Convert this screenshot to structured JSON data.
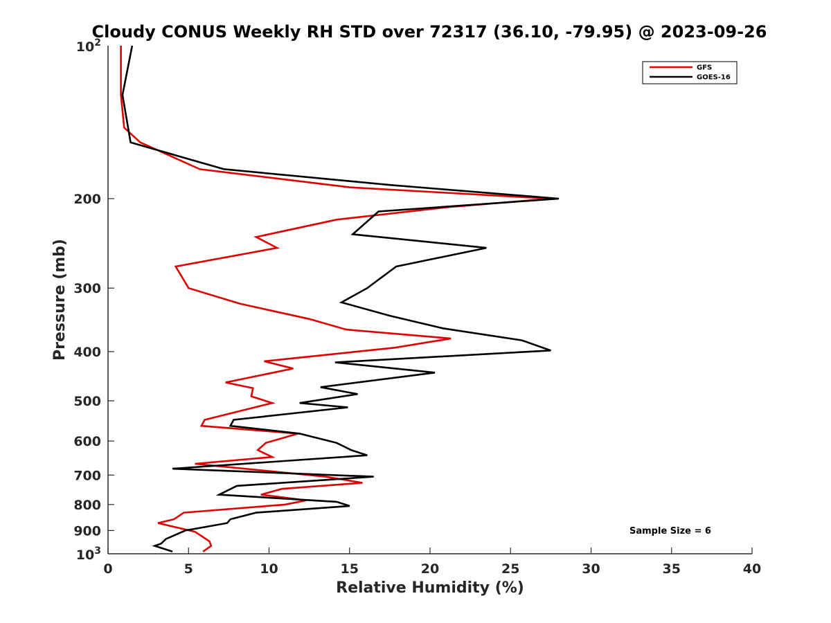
{
  "chart_data": {
    "type": "line",
    "title": "Cloudy CONUS Weekly RH STD over 72317 (36.10, -79.95) @ 2023-09-26",
    "xlabel": "Relative Humidity (%)",
    "ylabel": "Pressure (mb)",
    "xlim": [
      0,
      40
    ],
    "ylim": [
      100,
      1000
    ],
    "yscale": "log",
    "y_reversed": true,
    "x_ticks": [
      0,
      5,
      10,
      15,
      20,
      25,
      30,
      35,
      40
    ],
    "x_tick_labels": [
      "0",
      "5",
      "10",
      "15",
      "20",
      "25",
      "30",
      "35",
      "40"
    ],
    "y_ticks": [
      200,
      300,
      400,
      500,
      600,
      700,
      800,
      900
    ],
    "y_tick_labels": [
      "200",
      "300",
      "400",
      "500",
      "600",
      "700",
      "800",
      "900"
    ],
    "y_end_ticks": [
      {
        "value": 100,
        "base": "10",
        "exponent": "2"
      },
      {
        "value": 1000,
        "base": "10",
        "exponent": "3"
      }
    ],
    "grid": false,
    "legend_position": "top-right",
    "annotation": "Sample Size = 6",
    "series": [
      {
        "name": "GFS",
        "color": "#e00000",
        "points": [
          [
            0.8,
            100
          ],
          [
            0.8,
            125
          ],
          [
            1.0,
            145
          ],
          [
            2.0,
            155
          ],
          [
            5.7,
            175
          ],
          [
            15.0,
            190
          ],
          [
            27.5,
            200
          ],
          [
            21.0,
            208
          ],
          [
            14.2,
            220
          ],
          [
            9.2,
            238
          ],
          [
            10.5,
            250
          ],
          [
            4.2,
            272
          ],
          [
            5.0,
            300
          ],
          [
            8.2,
            322
          ],
          [
            12.5,
            345
          ],
          [
            14.8,
            362
          ],
          [
            21.3,
            377
          ],
          [
            17.8,
            393
          ],
          [
            9.7,
            418
          ],
          [
            11.5,
            432
          ],
          [
            7.3,
            460
          ],
          [
            9.0,
            472
          ],
          [
            8.9,
            490
          ],
          [
            10.2,
            505
          ],
          [
            6.0,
            545
          ],
          [
            5.8,
            560
          ],
          [
            11.8,
            580
          ],
          [
            9.8,
            605
          ],
          [
            9.3,
            625
          ],
          [
            10.2,
            645
          ],
          [
            5.4,
            665
          ],
          [
            13.5,
            705
          ],
          [
            15.8,
            725
          ],
          [
            10.8,
            745
          ],
          [
            9.5,
            765
          ],
          [
            12.3,
            785
          ],
          [
            11.0,
            800
          ],
          [
            4.7,
            830
          ],
          [
            4.1,
            855
          ],
          [
            3.1,
            870
          ],
          [
            5.4,
            905
          ],
          [
            6.3,
            945
          ],
          [
            6.4,
            965
          ],
          [
            5.9,
            990
          ]
        ]
      },
      {
        "name": "GOES-16",
        "color": "#000000",
        "points": [
          [
            1.5,
            100
          ],
          [
            0.9,
            125
          ],
          [
            1.4,
            155
          ],
          [
            7.2,
            175
          ],
          [
            17.5,
            188
          ],
          [
            28.0,
            200
          ],
          [
            16.8,
            212
          ],
          [
            15.2,
            235
          ],
          [
            23.5,
            250
          ],
          [
            17.9,
            272
          ],
          [
            16.1,
            300
          ],
          [
            14.5,
            320
          ],
          [
            17.5,
            340
          ],
          [
            20.8,
            360
          ],
          [
            25.7,
            380
          ],
          [
            27.5,
            398
          ],
          [
            14.1,
            420
          ],
          [
            20.3,
            440
          ],
          [
            13.2,
            470
          ],
          [
            15.5,
            485
          ],
          [
            11.9,
            505
          ],
          [
            14.9,
            515
          ],
          [
            7.8,
            545
          ],
          [
            7.6,
            560
          ],
          [
            11.9,
            580
          ],
          [
            14.2,
            605
          ],
          [
            15.1,
            625
          ],
          [
            16.1,
            640
          ],
          [
            4.0,
            680
          ],
          [
            16.5,
            705
          ],
          [
            8.0,
            735
          ],
          [
            6.9,
            765
          ],
          [
            14.2,
            790
          ],
          [
            15.0,
            805
          ],
          [
            9.2,
            830
          ],
          [
            7.6,
            855
          ],
          [
            7.4,
            870
          ],
          [
            4.8,
            900
          ],
          [
            3.6,
            935
          ],
          [
            3.3,
            955
          ],
          [
            2.9,
            965
          ],
          [
            4.0,
            990
          ]
        ]
      }
    ]
  }
}
